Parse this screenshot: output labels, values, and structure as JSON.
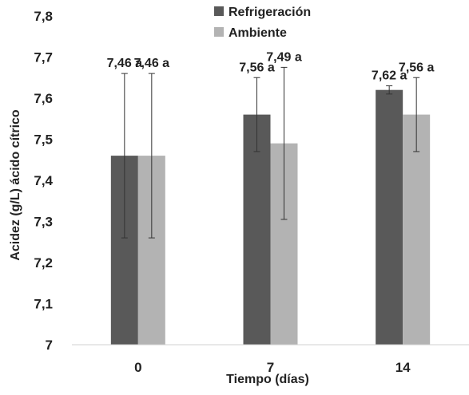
{
  "chart_data": {
    "type": "bar",
    "title": "",
    "xlabel": "Tiempo (días)",
    "ylabel": "Acidez (g/L) ácido cítrico",
    "categories": [
      "0",
      "7",
      "14"
    ],
    "ylim": [
      7,
      7.8
    ],
    "yticks": [
      "7",
      "7,1",
      "7,2",
      "7,3",
      "7,4",
      "7,5",
      "7,6",
      "7,7",
      "7,8"
    ],
    "grid": false,
    "legend_position": "top-center",
    "series": [
      {
        "name": "Refrigeración",
        "color": "#595959",
        "values": [
          7.46,
          7.56,
          7.62
        ],
        "error": [
          0.2,
          0.09,
          0.01
        ],
        "labels": [
          "7,46 a",
          "7,56 a",
          "7,62 a"
        ]
      },
      {
        "name": "Ambiente",
        "color": "#b3b3b3",
        "values": [
          7.46,
          7.49,
          7.56
        ],
        "error": [
          0.2,
          0.185,
          0.09
        ],
        "labels": [
          "7,46 a",
          "7,49 a",
          "7,56 a"
        ]
      }
    ]
  }
}
